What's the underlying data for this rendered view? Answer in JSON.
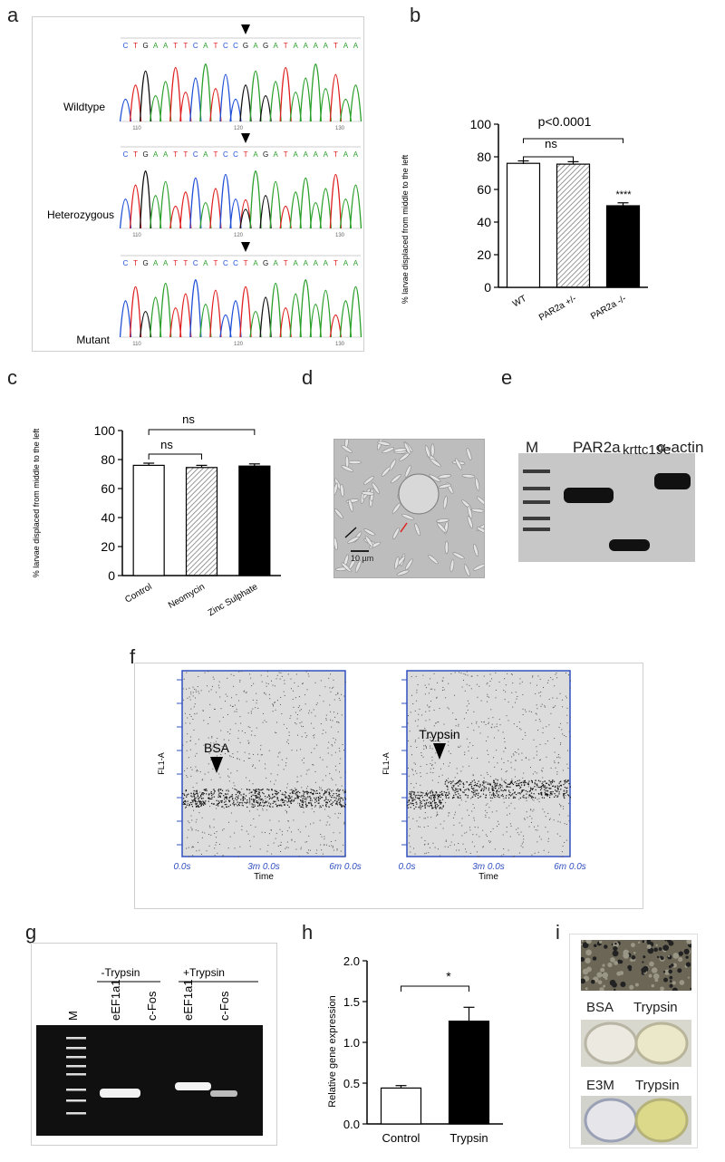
{
  "panels": {
    "a": "a",
    "b": "b",
    "c": "c",
    "d": "d",
    "e": "e",
    "f": "f",
    "g": "g",
    "h": "h",
    "i": "i"
  },
  "panel_a": {
    "sequence": "CTGAATTCATCCGAGATAAAATAA",
    "sequence_mut": "CTGAATTCATCCTAGATAAAATAA",
    "rows": [
      "Wildtype",
      "Heterozygous",
      "Mutant"
    ],
    "axis_ticks": [
      "110",
      "120",
      "130"
    ]
  },
  "panel_b_stats": {
    "p": "p<0.0001",
    "ns": "ns",
    "stars": "****"
  },
  "panel_c_stats": {
    "ns1": "ns",
    "ns2": "ns"
  },
  "panel_d": {
    "scale": "10 µm"
  },
  "panel_e": {
    "lanes": [
      "M",
      "PAR2a",
      "krttc19e",
      "α-actin"
    ]
  },
  "panel_f": {
    "left_label": "BSA",
    "right_label": "Trypsin",
    "ylabel": "FL1-A",
    "xlabel": "Time",
    "xticks": [
      "0.0s",
      "3m 0.0s",
      "6m 0.0s"
    ]
  },
  "panel_g": {
    "lanes": [
      "M",
      "eEF1a1",
      "c-Fos",
      "eEF1a1",
      "c-Fos"
    ],
    "groups": [
      "-Trypsin",
      "+Trypsin"
    ]
  },
  "panel_h_stats": {
    "star": "*"
  },
  "panel_i": {
    "row1": [
      "BSA",
      "Trypsin"
    ],
    "row2": [
      "E3M",
      "Trypsin"
    ]
  },
  "colors": {
    "bar_black": "#000000",
    "hatch": "#888888",
    "seq_A": "#2ca02c",
    "seq_C": "#1f4fd6",
    "seq_G": "#111111",
    "seq_T": "#e02020"
  },
  "chart_data": [
    {
      "id": "b",
      "type": "bar",
      "categories": [
        "WT",
        "PAR2a +/-",
        "PAR2a -/-"
      ],
      "values": [
        76,
        75.5,
        50
      ],
      "errors": [
        1.5,
        1.5,
        1.8
      ],
      "ylabel": "% larvae displaced from middle to the left",
      "ylim": [
        0,
        100
      ],
      "yticks": [
        0,
        20,
        40,
        60,
        80,
        100
      ]
    },
    {
      "id": "c",
      "type": "bar",
      "categories": [
        "Control",
        "Neomycin",
        "Zinc Sulphate"
      ],
      "values": [
        76,
        74.5,
        75.5
      ],
      "errors": [
        1.5,
        1.5,
        1.5
      ],
      "ylabel": "% larvae displaced from middle to the left",
      "ylim": [
        0,
        100
      ],
      "yticks": [
        0,
        20,
        40,
        60,
        80,
        100
      ]
    },
    {
      "id": "h",
      "type": "bar",
      "categories": [
        "Control",
        "Trypsin"
      ],
      "values": [
        0.44,
        1.26
      ],
      "errors": [
        0.03,
        0.17
      ],
      "ylabel": "Relative gene expression",
      "ylim": [
        0,
        2.0
      ],
      "yticks": [
        "0.0",
        "0.5",
        "1.0",
        "1.5",
        "2.0"
      ]
    }
  ]
}
